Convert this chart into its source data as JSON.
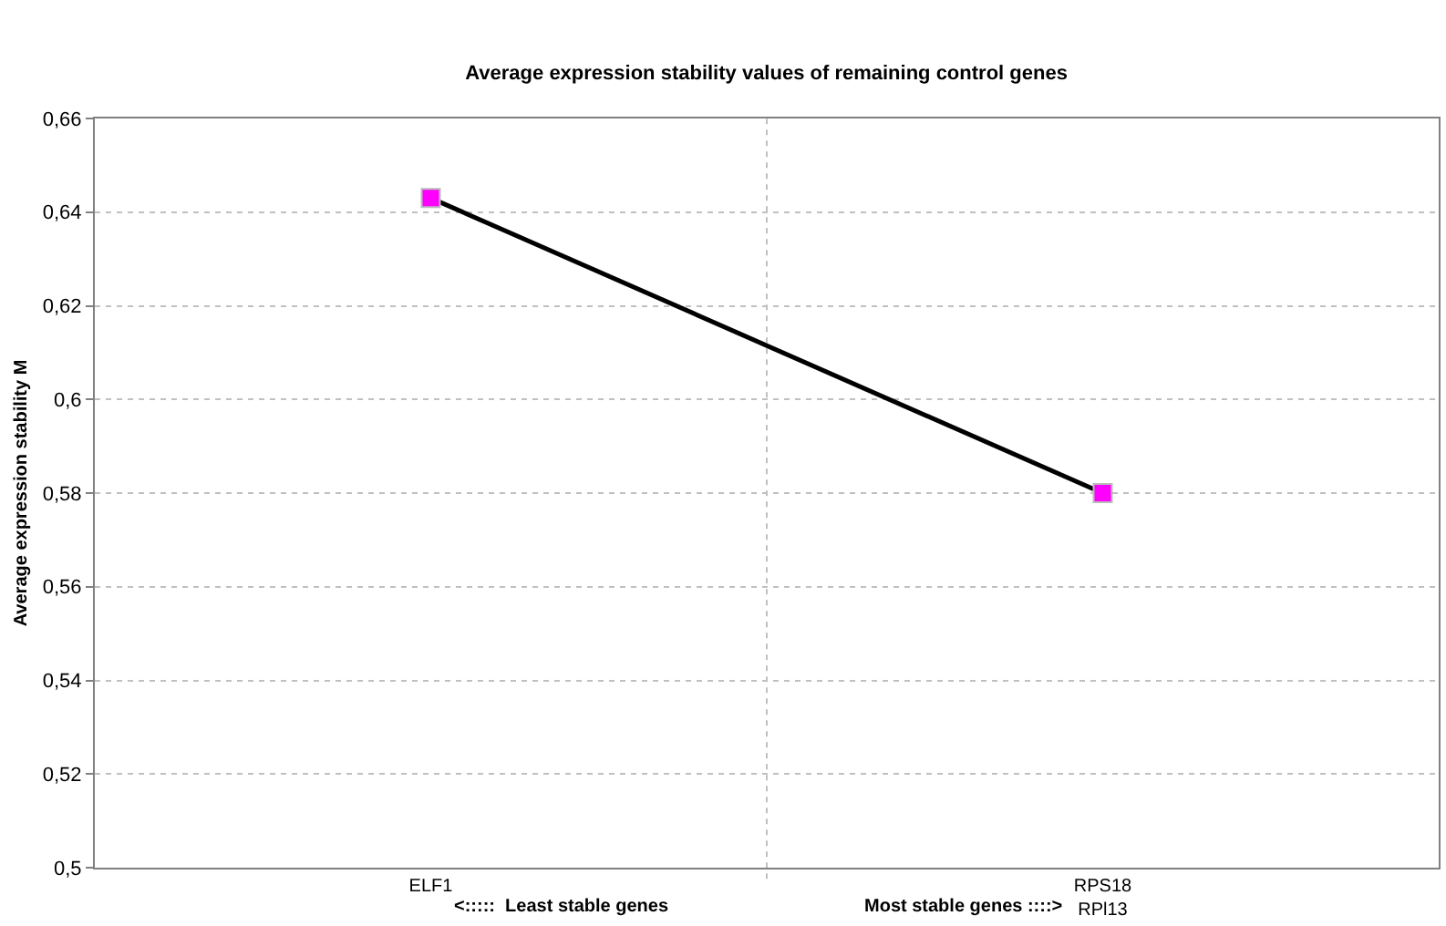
{
  "chart_data": {
    "type": "line",
    "title": "Average expression stability values of remaining control genes",
    "ylabel": "Average expression stability M",
    "categories": [
      "ELF1",
      "RPS18\nRPl13"
    ],
    "series": [
      {
        "color": "#000000",
        "colors": [
          "#ff00ff",
          "#ff00ff"
        ],
        "values": [
          0.643,
          0.58
        ]
      }
    ],
    "marker": "square",
    "line_style": "solid",
    "ylim": [
      0.5,
      0.66
    ],
    "yticks": [
      {
        "value": 0.5,
        "label": "0,5"
      },
      {
        "value": 0.52,
        "label": "0,52"
      },
      {
        "value": 0.54,
        "label": "0,54"
      },
      {
        "value": 0.56,
        "label": "0,56"
      },
      {
        "value": 0.58,
        "label": "0,58"
      },
      {
        "value": 0.6,
        "label": "0,6"
      },
      {
        "value": 0.62,
        "label": "0,62"
      },
      {
        "value": 0.64,
        "label": "0,64"
      },
      {
        "value": 0.66,
        "label": "0,66"
      }
    ],
    "grid": true,
    "legend": false,
    "annotations": [
      "<:::::  Least stable genes",
      "Most stable genes ::::>"
    ]
  }
}
